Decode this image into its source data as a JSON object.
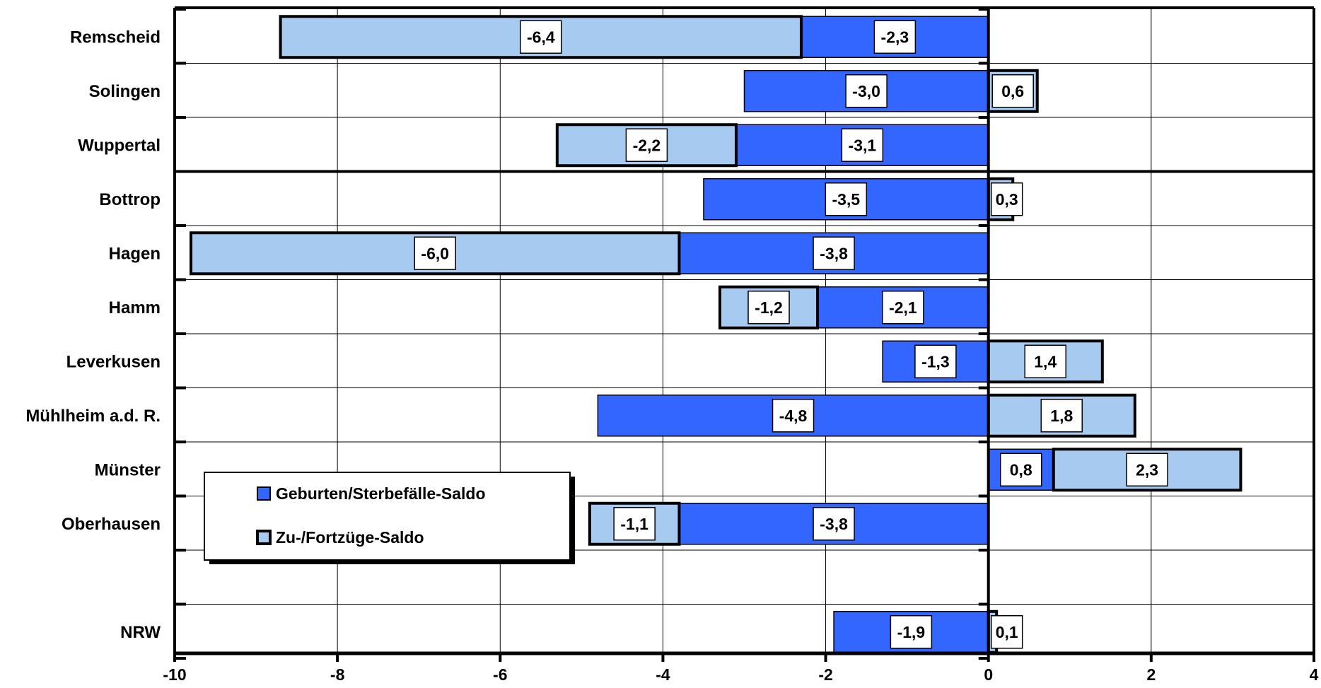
{
  "chart_data": {
    "type": "bar",
    "orientation": "horizontal",
    "stacked": true,
    "categories": [
      "Remscheid",
      "Solingen",
      "Wuppertal",
      "Bottrop",
      "Hagen",
      "Hamm",
      "Leverkusen",
      "Mühlheim a.d. R.",
      "Münster",
      "Oberhausen",
      "",
      "NRW"
    ],
    "series": [
      {
        "name": "Geburten/Sterbefälle-Saldo",
        "values": [
          -2.3,
          -3.0,
          -3.1,
          -3.5,
          -3.8,
          -2.1,
          -1.3,
          -4.8,
          0.8,
          -3.8,
          null,
          -1.9
        ],
        "labels": [
          "-2,3",
          "-3,0",
          "-3,1",
          "-3,5",
          "-3,8",
          "-2,1",
          "-1,3",
          "-4,8",
          "0,8",
          "-3,8",
          "",
          "-1,9"
        ],
        "color": "#3366ff"
      },
      {
        "name": "Zu-/Fortzüge-Saldo",
        "values": [
          -6.4,
          0.6,
          -2.2,
          0.3,
          -6.0,
          -1.2,
          1.4,
          1.8,
          2.3,
          -1.1,
          null,
          0.1
        ],
        "labels": [
          "-6,4",
          "0,6",
          "-2,2",
          "0,3",
          "-6,0",
          "-1,2",
          "1,4",
          "1,8",
          "2,3",
          "-1,1",
          "",
          "0,1"
        ],
        "color": "#a6caf0"
      }
    ],
    "xlim": [
      -10,
      4
    ],
    "xticks": [
      -10,
      -8,
      -6,
      -4,
      -2,
      0,
      2,
      4
    ],
    "xtick_labels": [
      "-10",
      "-8",
      "-6",
      "-4",
      "-2",
      "0",
      "2",
      "4"
    ],
    "grid": true,
    "legend_position": "lower-left",
    "group_separator_after": "Wuppertal"
  }
}
